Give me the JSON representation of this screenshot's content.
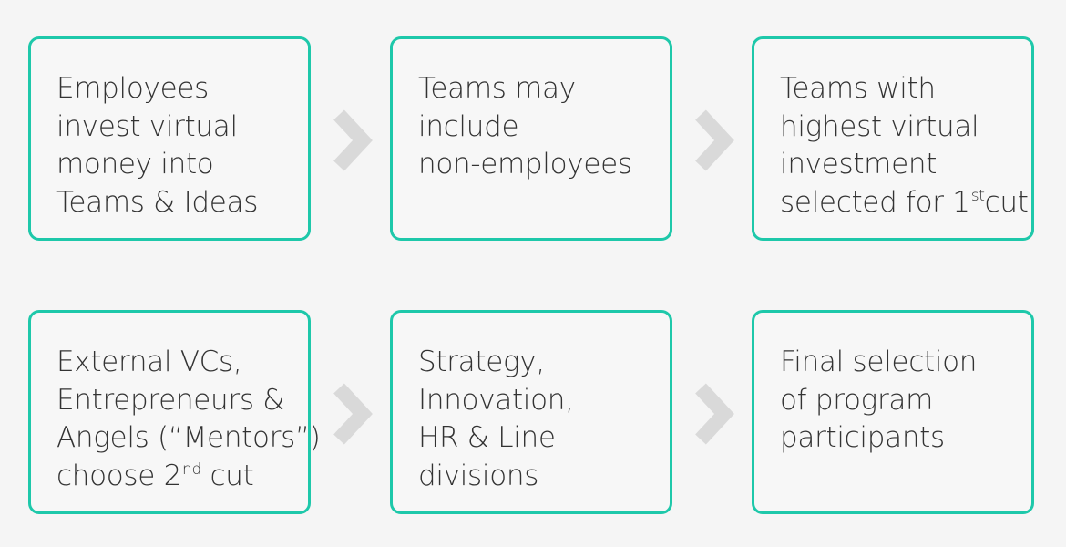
{
  "colors": {
    "box_border": "#1ec8aa",
    "text": "#333333",
    "arrow": "#d9d9d9",
    "background": "#f5f5f5"
  },
  "steps": [
    {
      "lines": [
        {
          "text": "Employees"
        },
        {
          "text": "invest virtual"
        },
        {
          "text": "money into"
        },
        {
          "text": "Teams & Ideas"
        }
      ]
    },
    {
      "lines": [
        {
          "text": "Teams may"
        },
        {
          "text": "include"
        },
        {
          "text": "non-employees"
        }
      ]
    },
    {
      "lines": [
        {
          "text": "Teams with"
        },
        {
          "text": "highest virtual"
        },
        {
          "text": "investment"
        },
        {
          "text": "selected for 1",
          "sup": "st",
          "after": "cut"
        }
      ]
    },
    {
      "lines": [
        {
          "text": "External VCs,"
        },
        {
          "text": "Entrepreneurs &"
        },
        {
          "text": "Angels (“Mentors”)"
        },
        {
          "text": "choose 2",
          "sup": "nd",
          "after": " cut"
        }
      ]
    },
    {
      "lines": [
        {
          "text": "Strategy,"
        },
        {
          "text": "Innovation,"
        },
        {
          "text": "HR & Line"
        },
        {
          "text": "divisions"
        }
      ]
    },
    {
      "lines": [
        {
          "text": "Final selection"
        },
        {
          "text": "of program"
        },
        {
          "text": "participants"
        }
      ]
    }
  ],
  "arrows": [
    {
      "icon": "chevron-right-icon"
    },
    {
      "icon": "chevron-right-icon"
    },
    {
      "icon": "chevron-right-icon"
    },
    {
      "icon": "chevron-right-icon"
    }
  ]
}
